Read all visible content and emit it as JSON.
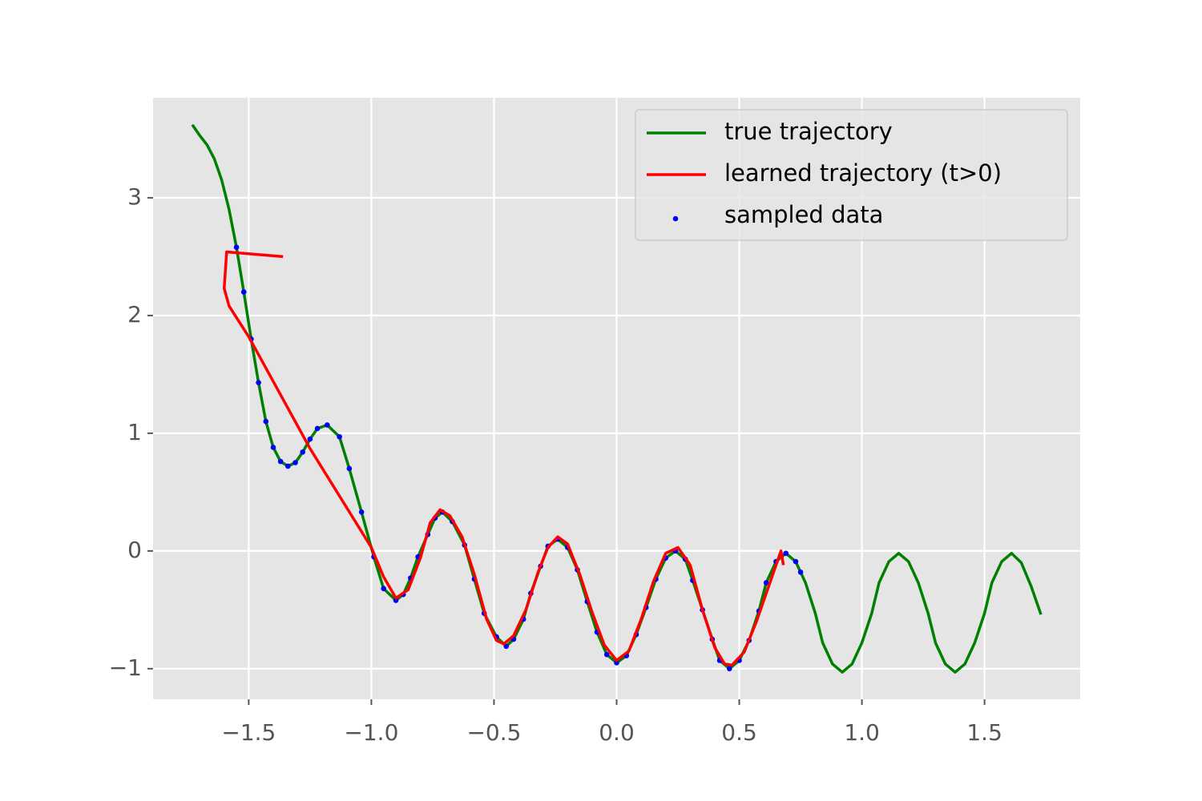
{
  "chart_data": {
    "type": "line",
    "xlim": [
      -1.89,
      1.89
    ],
    "ylim": [
      -1.26,
      3.85
    ],
    "xticks": [
      {
        "value": -1.5,
        "label": "−1.5"
      },
      {
        "value": -1.0,
        "label": "−1.0"
      },
      {
        "value": -0.5,
        "label": "−0.5"
      },
      {
        "value": 0.0,
        "label": "0.0"
      },
      {
        "value": 0.5,
        "label": "0.5"
      },
      {
        "value": 1.0,
        "label": "1.0"
      },
      {
        "value": 1.5,
        "label": "1.5"
      }
    ],
    "yticks": [
      {
        "value": -1,
        "label": "−1"
      },
      0,
      1,
      2,
      3
    ],
    "grid": true,
    "legend": "upper right",
    "series": [
      {
        "name": "true trajectory",
        "type": "line",
        "color": "#008000",
        "x": [
          -1.73,
          -1.7,
          -1.67,
          -1.64,
          -1.61,
          -1.58,
          -1.55,
          -1.52,
          -1.49,
          -1.46,
          -1.43,
          -1.4,
          -1.37,
          -1.34,
          -1.31,
          -1.28,
          -1.25,
          -1.22,
          -1.18,
          -1.13,
          -1.09,
          -1.04,
          -0.99,
          -0.95,
          -0.9,
          -0.87,
          -0.84,
          -0.81,
          -0.77,
          -0.74,
          -0.71,
          -0.67,
          -0.62,
          -0.58,
          -0.54,
          -0.49,
          -0.45,
          -0.42,
          -0.38,
          -0.35,
          -0.31,
          -0.28,
          -0.24,
          -0.2,
          -0.16,
          -0.12,
          -0.08,
          -0.04,
          0.0,
          0.04,
          0.08,
          0.12,
          0.16,
          0.2,
          0.24,
          0.28,
          0.31,
          0.35,
          0.39,
          0.42,
          0.46,
          0.5,
          0.54,
          0.58,
          0.61,
          0.65,
          0.69,
          0.73,
          0.77,
          0.81,
          0.84,
          0.88,
          0.92,
          0.96,
          1.0,
          1.04,
          1.07,
          1.11,
          1.15,
          1.19,
          1.23,
          1.27,
          1.3,
          1.34,
          1.38,
          1.42,
          1.46,
          1.5,
          1.53,
          1.57,
          1.61,
          1.65,
          1.69,
          1.73
        ],
        "values": [
          3.62,
          3.53,
          3.45,
          3.33,
          3.15,
          2.9,
          2.58,
          2.2,
          1.8,
          1.43,
          1.1,
          0.88,
          0.76,
          0.72,
          0.75,
          0.84,
          0.95,
          1.04,
          1.07,
          0.97,
          0.7,
          0.33,
          -0.05,
          -0.32,
          -0.42,
          -0.37,
          -0.23,
          -0.05,
          0.14,
          0.28,
          0.33,
          0.25,
          0.05,
          -0.24,
          -0.53,
          -0.73,
          -0.81,
          -0.75,
          -0.58,
          -0.36,
          -0.13,
          0.04,
          0.1,
          0.03,
          -0.16,
          -0.43,
          -0.69,
          -0.88,
          -0.95,
          -0.89,
          -0.71,
          -0.48,
          -0.24,
          -0.06,
          0.0,
          -0.07,
          -0.25,
          -0.5,
          -0.75,
          -0.93,
          -1.0,
          -0.93,
          -0.76,
          -0.51,
          -0.27,
          -0.09,
          -0.02,
          -0.09,
          -0.27,
          -0.53,
          -0.78,
          -0.96,
          -1.03,
          -0.96,
          -0.78,
          -0.53,
          -0.27,
          -0.09,
          -0.02,
          -0.09,
          -0.27,
          -0.53,
          -0.78,
          -0.96,
          -1.03,
          -0.96,
          -0.78,
          -0.53,
          -0.27,
          -0.09,
          -0.02,
          -0.1,
          -0.3,
          -0.54
        ]
      },
      {
        "name": "learned trajectory (t>0)",
        "type": "line",
        "color": "#ff0000",
        "x": [
          -1.36,
          -1.59,
          -1.6,
          -1.58,
          -1.5,
          -1.25,
          -1.0,
          -0.95,
          -0.9,
          -0.85,
          -0.8,
          -0.76,
          -0.72,
          -0.68,
          -0.63,
          -0.58,
          -0.53,
          -0.49,
          -0.46,
          -0.42,
          -0.37,
          -0.32,
          -0.28,
          -0.24,
          -0.2,
          -0.15,
          -0.1,
          -0.05,
          0.0,
          0.05,
          0.1,
          0.15,
          0.2,
          0.25,
          0.3,
          0.35,
          0.4,
          0.44,
          0.47,
          0.52,
          0.57,
          0.62,
          0.67,
          0.68
        ],
        "values": [
          2.5,
          2.54,
          2.23,
          2.08,
          1.82,
          0.87,
          0.03,
          -0.22,
          -0.4,
          -0.33,
          -0.06,
          0.24,
          0.35,
          0.3,
          0.12,
          -0.2,
          -0.58,
          -0.76,
          -0.79,
          -0.72,
          -0.5,
          -0.18,
          0.03,
          0.12,
          0.06,
          -0.2,
          -0.52,
          -0.8,
          -0.93,
          -0.85,
          -0.58,
          -0.26,
          -0.02,
          0.03,
          -0.12,
          -0.5,
          -0.82,
          -0.96,
          -0.97,
          -0.86,
          -0.6,
          -0.3,
          0.0,
          -0.12
        ]
      },
      {
        "name": "sampled data",
        "type": "scatter",
        "color": "#0000ff",
        "x": [
          -1.55,
          -1.52,
          -1.49,
          -1.46,
          -1.43,
          -1.4,
          -1.37,
          -1.34,
          -1.31,
          -1.28,
          -1.25,
          -1.22,
          -1.18,
          -1.13,
          -1.09,
          -1.04,
          -0.99,
          -0.95,
          -0.9,
          -0.87,
          -0.84,
          -0.81,
          -0.77,
          -0.74,
          -0.71,
          -0.67,
          -0.62,
          -0.58,
          -0.54,
          -0.49,
          -0.45,
          -0.42,
          -0.38,
          -0.35,
          -0.31,
          -0.28,
          -0.24,
          -0.2,
          -0.16,
          -0.12,
          -0.08,
          -0.04,
          0.0,
          0.04,
          0.08,
          0.12,
          0.16,
          0.2,
          0.24,
          0.28,
          0.31,
          0.35,
          0.39,
          0.42,
          0.46,
          0.5,
          0.54,
          0.58,
          0.61,
          0.65,
          0.69,
          0.73,
          0.75
        ],
        "values": [
          2.58,
          2.2,
          1.8,
          1.43,
          1.1,
          0.88,
          0.76,
          0.72,
          0.75,
          0.84,
          0.95,
          1.04,
          1.07,
          0.97,
          0.7,
          0.33,
          -0.05,
          -0.32,
          -0.42,
          -0.37,
          -0.23,
          -0.05,
          0.14,
          0.28,
          0.33,
          0.25,
          0.05,
          -0.24,
          -0.53,
          -0.73,
          -0.81,
          -0.75,
          -0.58,
          -0.36,
          -0.13,
          0.04,
          0.1,
          0.03,
          -0.16,
          -0.43,
          -0.69,
          -0.88,
          -0.95,
          -0.89,
          -0.71,
          -0.48,
          -0.24,
          -0.06,
          0.0,
          -0.07,
          -0.25,
          -0.5,
          -0.75,
          -0.93,
          -1.0,
          -0.93,
          -0.76,
          -0.51,
          -0.27,
          -0.09,
          -0.02,
          -0.09,
          -0.18
        ]
      }
    ]
  }
}
